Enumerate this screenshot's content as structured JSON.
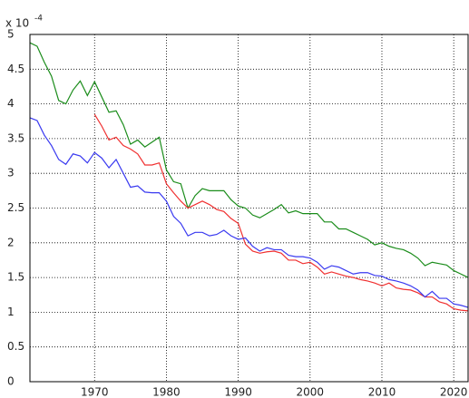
{
  "chart_data": {
    "type": "line",
    "y_multiplier": {
      "base": "x 10",
      "exponent": "-4"
    },
    "x": [
      1961,
      1962,
      1963,
      1964,
      1965,
      1966,
      1967,
      1968,
      1969,
      1970,
      1971,
      1972,
      1973,
      1974,
      1975,
      1976,
      1977,
      1978,
      1979,
      1980,
      1981,
      1982,
      1983,
      1984,
      1985,
      1986,
      1987,
      1988,
      1989,
      1990,
      1991,
      1992,
      1993,
      1994,
      1995,
      1996,
      1997,
      1998,
      1999,
      2000,
      2001,
      2002,
      2003,
      2004,
      2005,
      2006,
      2007,
      2008,
      2009,
      2010,
      2011,
      2012,
      2013,
      2014,
      2015,
      2016,
      2017,
      2018,
      2019,
      2020,
      2021,
      2022
    ],
    "series": [
      {
        "color": "#1a8c1a",
        "values": [
          4.88,
          4.83,
          4.6,
          4.4,
          4.05,
          4.0,
          4.2,
          4.33,
          4.12,
          4.32,
          4.1,
          3.88,
          3.9,
          3.7,
          3.42,
          3.48,
          3.38,
          3.45,
          3.52,
          3.05,
          2.88,
          2.85,
          2.5,
          2.68,
          2.78,
          2.75,
          2.75,
          2.75,
          2.62,
          2.53,
          2.5,
          2.4,
          2.36,
          2.42,
          2.48,
          2.55,
          2.43,
          2.46,
          2.42,
          2.42,
          2.42,
          2.3,
          2.3,
          2.2,
          2.2,
          2.15,
          2.1,
          2.05,
          1.97,
          2.0,
          1.95,
          1.92,
          1.9,
          1.85,
          1.78,
          1.67,
          1.72,
          1.7,
          1.68,
          1.6,
          1.55,
          1.5
        ]
      },
      {
        "color": "#f03030",
        "values": [
          null,
          null,
          null,
          null,
          null,
          null,
          null,
          null,
          null,
          3.85,
          3.68,
          3.48,
          3.52,
          3.4,
          3.35,
          3.28,
          3.12,
          3.12,
          3.15,
          2.85,
          2.72,
          2.6,
          2.5,
          2.55,
          2.6,
          2.55,
          2.48,
          2.45,
          2.35,
          2.28,
          1.98,
          1.88,
          1.85,
          1.87,
          1.88,
          1.85,
          1.75,
          1.75,
          1.7,
          1.72,
          1.65,
          1.55,
          1.58,
          1.55,
          1.52,
          1.5,
          1.47,
          1.45,
          1.42,
          1.38,
          1.42,
          1.35,
          1.33,
          1.32,
          1.28,
          1.22,
          1.22,
          1.15,
          1.12,
          1.05,
          1.03,
          1.02
        ]
      },
      {
        "color": "#3a3af0",
        "values": [
          3.8,
          3.76,
          3.55,
          3.4,
          3.2,
          3.13,
          3.28,
          3.25,
          3.15,
          3.3,
          3.22,
          3.08,
          3.2,
          3.0,
          2.8,
          2.82,
          2.73,
          2.72,
          2.72,
          2.6,
          2.38,
          2.28,
          2.1,
          2.15,
          2.15,
          2.1,
          2.12,
          2.18,
          2.1,
          2.05,
          2.07,
          1.95,
          1.88,
          1.93,
          1.9,
          1.9,
          1.82,
          1.8,
          1.8,
          1.78,
          1.72,
          1.62,
          1.67,
          1.65,
          1.6,
          1.55,
          1.57,
          1.57,
          1.53,
          1.52,
          1.47,
          1.45,
          1.42,
          1.38,
          1.32,
          1.22,
          1.3,
          1.2,
          1.2,
          1.12,
          1.1,
          1.07
        ]
      }
    ],
    "xlim": [
      1961,
      2022
    ],
    "ylim": [
      0,
      5
    ],
    "xticks": [
      1970,
      1980,
      1990,
      2000,
      2010,
      2020
    ],
    "yticks": [
      0,
      0.5,
      1,
      1.5,
      2,
      2.5,
      3,
      3.5,
      4,
      4.5,
      5
    ],
    "grid": true
  }
}
